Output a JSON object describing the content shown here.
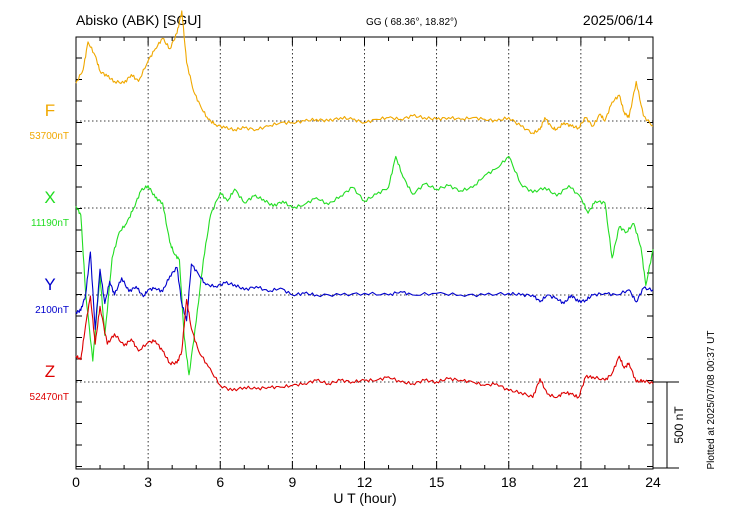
{
  "header": {
    "station": "Abisko (ABK)  [SGU]",
    "coords": "GG ( 68.36°,  18.82°)",
    "date": "2025/06/14"
  },
  "footer_note": "Plotted at 2025/07/08 00:37 UT",
  "chart_data": {
    "type": "line",
    "xlabel": "U T (hour)",
    "xlim": [
      0,
      24
    ],
    "xticks": [
      0,
      3,
      6,
      9,
      12,
      15,
      18,
      21,
      24
    ],
    "xtick_labels": [
      "0",
      "3",
      "6",
      "9",
      "12",
      "15",
      "18",
      "21",
      "24"
    ],
    "scale_bar": {
      "label": "500 nT",
      "value_nT": 500
    },
    "grid": "dotted",
    "series": [
      {
        "name": "F",
        "baseline_label": "53700nT",
        "baseline_nT": 53700,
        "color": "#f0a800",
        "x": [
          0,
          0.3,
          0.5,
          0.8,
          1.0,
          1.3,
          1.6,
          2.0,
          2.3,
          2.6,
          3.0,
          3.3,
          3.6,
          3.9,
          4.2,
          4.4,
          4.6,
          4.9,
          5.2,
          5.5,
          5.8,
          6.2,
          6.6,
          7.0,
          7.5,
          8.0,
          8.5,
          9.0,
          9.5,
          10.0,
          10.5,
          11.0,
          11.5,
          12.0,
          12.5,
          13.0,
          13.5,
          14.0,
          14.5,
          15.0,
          15.5,
          16.0,
          16.5,
          17.0,
          17.5,
          18.0,
          18.5,
          19.0,
          19.3,
          19.5,
          19.8,
          20.0,
          20.3,
          20.6,
          20.9,
          21.2,
          21.5,
          21.8,
          22.0,
          22.3,
          22.6,
          22.8,
          23.0,
          23.3,
          23.6,
          24.0
        ],
        "y": [
          53920,
          54000,
          54160,
          54080,
          53990,
          53960,
          53930,
          53920,
          53970,
          53930,
          54050,
          54120,
          54180,
          54120,
          54210,
          54340,
          54040,
          53870,
          53780,
          53710,
          53680,
          53660,
          53650,
          53660,
          53650,
          53670,
          53690,
          53690,
          53700,
          53710,
          53700,
          53720,
          53710,
          53690,
          53710,
          53720,
          53710,
          53730,
          53720,
          53710,
          53720,
          53710,
          53720,
          53710,
          53700,
          53720,
          53670,
          53630,
          53650,
          53720,
          53660,
          53650,
          53690,
          53670,
          53660,
          53720,
          53670,
          53740,
          53700,
          53810,
          53850,
          53750,
          53720,
          53930,
          53730,
          53670
        ]
      },
      {
        "name": "X",
        "baseline_label": "11190nT",
        "baseline_nT": 11190,
        "color": "#22dd22",
        "x": [
          0,
          0.2,
          0.4,
          0.7,
          1.0,
          1.2,
          1.5,
          1.8,
          2.1,
          2.4,
          2.7,
          3.0,
          3.3,
          3.6,
          3.9,
          4.1,
          4.3,
          4.5,
          4.7,
          5.0,
          5.3,
          5.6,
          6.0,
          6.3,
          6.6,
          7.0,
          7.4,
          7.8,
          8.2,
          8.6,
          9.0,
          9.5,
          10.0,
          10.5,
          11.0,
          11.5,
          12.0,
          12.5,
          13.0,
          13.3,
          13.6,
          14.0,
          14.5,
          15.0,
          15.5,
          16.0,
          16.5,
          17.0,
          17.5,
          18.0,
          18.5,
          19.0,
          19.5,
          20.0,
          20.5,
          21.0,
          21.3,
          21.6,
          22.0,
          22.3,
          22.6,
          22.9,
          23.2,
          23.5,
          23.7,
          24.0
        ],
        "y": [
          11200,
          11150,
          10700,
          10300,
          10800,
          10450,
          10900,
          11050,
          11100,
          11190,
          11290,
          11320,
          11250,
          11220,
          10990,
          10920,
          10890,
          10440,
          10220,
          10530,
          10890,
          11150,
          11280,
          11230,
          11300,
          11220,
          11260,
          11240,
          11200,
          11230,
          11190,
          11210,
          11250,
          11210,
          11260,
          11310,
          11230,
          11270,
          11310,
          11490,
          11370,
          11270,
          11330,
          11300,
          11320,
          11290,
          11310,
          11380,
          11420,
          11490,
          11330,
          11280,
          11310,
          11260,
          11320,
          11250,
          11160,
          11230,
          11220,
          10900,
          11080,
          11050,
          11100,
          10960,
          10740,
          10950
        ]
      },
      {
        "name": "Y",
        "baseline_label": "2100nT",
        "baseline_nT": 2100,
        "color": "#0000cc",
        "x": [
          0,
          0.2,
          0.4,
          0.6,
          0.8,
          1.0,
          1.2,
          1.4,
          1.6,
          1.9,
          2.2,
          2.5,
          2.8,
          3.0,
          3.3,
          3.6,
          3.9,
          4.2,
          4.4,
          4.6,
          4.8,
          5.1,
          5.4,
          5.8,
          6.2,
          6.6,
          7.0,
          7.5,
          8.0,
          8.5,
          9.0,
          9.5,
          10.0,
          11.0,
          12.0,
          13.0,
          13.5,
          14.0,
          15.0,
          16.0,
          17.0,
          18.0,
          18.5,
          19.0,
          19.3,
          19.6,
          20.0,
          20.3,
          20.6,
          20.9,
          21.2,
          21.5,
          22.0,
          22.5,
          23.0,
          23.3,
          23.6,
          24.0
        ],
        "y": [
          2000,
          2010,
          2100,
          2350,
          1900,
          2250,
          2050,
          2180,
          2100,
          2200,
          2120,
          2150,
          2090,
          2130,
          2140,
          2120,
          2210,
          2260,
          2050,
          1950,
          2280,
          2220,
          2160,
          2150,
          2170,
          2160,
          2130,
          2150,
          2120,
          2140,
          2100,
          2110,
          2100,
          2100,
          2110,
          2100,
          2120,
          2100,
          2110,
          2100,
          2100,
          2110,
          2100,
          2100,
          2060,
          2100,
          2080,
          2050,
          2100,
          2060,
          2070,
          2100,
          2110,
          2100,
          2130,
          2060,
          2140,
          2130
        ]
      },
      {
        "name": "Z",
        "baseline_label": "52470nT",
        "baseline_nT": 52470,
        "color": "#dd0000",
        "x": [
          0,
          0.2,
          0.4,
          0.6,
          0.8,
          1.0,
          1.3,
          1.6,
          2.0,
          2.3,
          2.6,
          3.0,
          3.3,
          3.6,
          3.9,
          4.2,
          4.4,
          4.6,
          4.8,
          5.1,
          5.5,
          6.0,
          6.5,
          7.0,
          7.5,
          8.0,
          8.5,
          9.0,
          9.5,
          10.0,
          10.5,
          11.0,
          11.5,
          12.0,
          12.5,
          13.0,
          13.5,
          14.0,
          14.5,
          15.0,
          15.5,
          16.0,
          16.5,
          17.0,
          17.5,
          18.0,
          18.5,
          19.0,
          19.3,
          19.6,
          20.0,
          20.3,
          20.6,
          20.9,
          21.2,
          21.5,
          22.0,
          22.3,
          22.6,
          22.8,
          23.0,
          23.3,
          23.6,
          24.0
        ],
        "y": [
          52620,
          52600,
          52800,
          52970,
          52690,
          52910,
          52690,
          52750,
          52680,
          52720,
          52650,
          52700,
          52710,
          52650,
          52580,
          52580,
          52650,
          52950,
          52780,
          52650,
          52560,
          52450,
          52420,
          52440,
          52430,
          52440,
          52440,
          52450,
          52460,
          52480,
          52460,
          52480,
          52470,
          52480,
          52480,
          52500,
          52470,
          52460,
          52480,
          52470,
          52490,
          52480,
          52470,
          52450,
          52460,
          52420,
          52410,
          52380,
          52490,
          52400,
          52380,
          52410,
          52400,
          52380,
          52500,
          52500,
          52480,
          52520,
          52620,
          52550,
          52580,
          52470,
          52480,
          52460
        ]
      }
    ]
  }
}
